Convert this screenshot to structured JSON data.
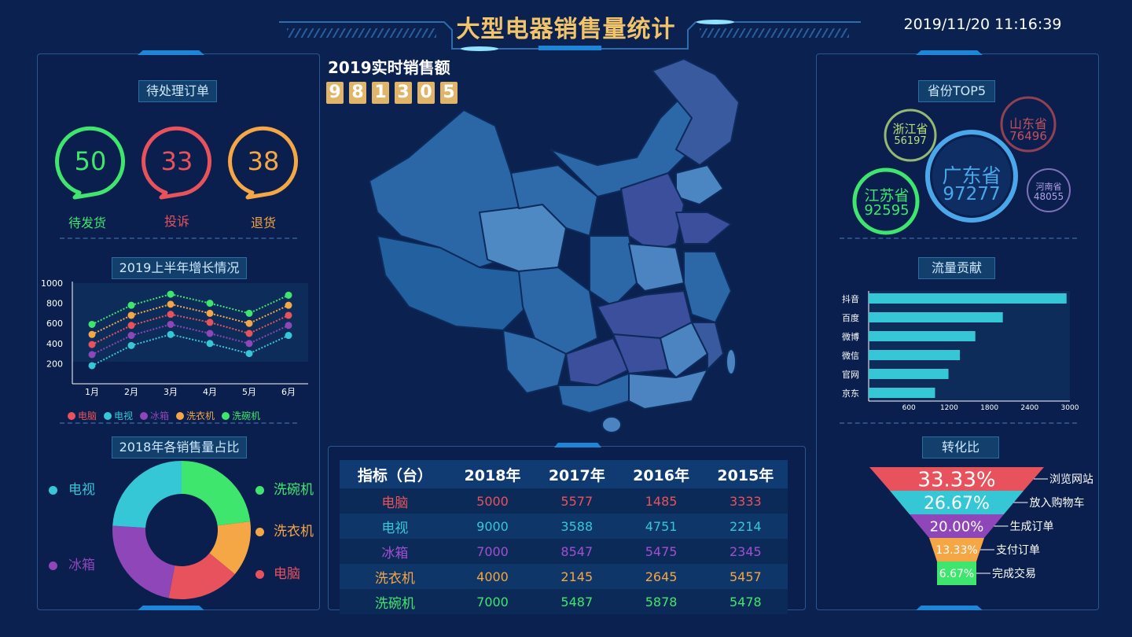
{
  "header": {
    "title": "大型电器销售量统计",
    "datetime": "2019/11/20 11:16:39"
  },
  "pending_orders": {
    "title": "待处理订单",
    "items": [
      {
        "value": "50",
        "label": "待发货",
        "color": "#3fe66d"
      },
      {
        "value": "33",
        "label": "投诉",
        "color": "#e8525d"
      },
      {
        "value": "38",
        "label": "退货",
        "color": "#f5a645"
      }
    ]
  },
  "growth": {
    "title": "2019上半年增长情况",
    "chart_data": {
      "type": "line",
      "categories": [
        "1月",
        "2月",
        "3月",
        "4月",
        "5月",
        "6月"
      ],
      "y_ticks": [
        "1000",
        "800",
        "600",
        "400",
        "200"
      ],
      "ylim": [
        0,
        1000
      ],
      "series": [
        {
          "name": "电脑",
          "color": "#e8525d",
          "values": [
            390,
            580,
            690,
            610,
            500,
            680
          ]
        },
        {
          "name": "电视",
          "color": "#35c7d6",
          "values": [
            180,
            380,
            490,
            400,
            300,
            480
          ]
        },
        {
          "name": "冰箱",
          "color": "#8f46b8",
          "values": [
            290,
            480,
            590,
            500,
            400,
            580
          ]
        },
        {
          "name": "洗衣机",
          "color": "#f5a645",
          "values": [
            490,
            680,
            790,
            700,
            600,
            780
          ]
        },
        {
          "name": "洗碗机",
          "color": "#3fe66d",
          "values": [
            590,
            780,
            890,
            800,
            700,
            880
          ]
        }
      ]
    }
  },
  "share": {
    "title": "2018年各销售量占比",
    "chart_data": {
      "type": "pie",
      "slices": [
        {
          "name": "洗碗机",
          "value": 23,
          "color": "#3fe66d"
        },
        {
          "name": "洗衣机",
          "value": 13,
          "color": "#f5a645"
        },
        {
          "name": "电脑",
          "value": 17,
          "color": "#e8525d"
        },
        {
          "name": "冰箱",
          "value": 23,
          "color": "#8f46b8"
        },
        {
          "name": "电视",
          "value": 24,
          "color": "#35c7d6"
        }
      ]
    }
  },
  "realtime": {
    "title": "2019实时销售额",
    "digits": [
      "9",
      "8",
      "1",
      "3",
      "0",
      "5"
    ]
  },
  "sales_table": {
    "headers": [
      "指标（台）",
      "2018年",
      "2017年",
      "2016年",
      "2015年"
    ],
    "rows": [
      {
        "name": "电脑",
        "color": "#e8525d",
        "values": [
          "5000",
          "5577",
          "1485",
          "3333"
        ]
      },
      {
        "name": "电视",
        "color": "#35c7d6",
        "values": [
          "9000",
          "3588",
          "4751",
          "2214"
        ]
      },
      {
        "name": "冰箱",
        "color": "#a24fd0",
        "values": [
          "7000",
          "8547",
          "5475",
          "2345"
        ]
      },
      {
        "name": "洗衣机",
        "color": "#f5a645",
        "values": [
          "4000",
          "2145",
          "2645",
          "5457"
        ]
      },
      {
        "name": "洗碗机",
        "color": "#3fe66d",
        "values": [
          "7000",
          "5487",
          "5878",
          "5478"
        ]
      }
    ]
  },
  "province_top5": {
    "title": "省份TOP5",
    "bubbles": [
      {
        "name": "浙江省",
        "value": "56197",
        "color": "#b7e07a"
      },
      {
        "name": "山东省",
        "value": "76496",
        "color": "#b34a55"
      },
      {
        "name": "广东省",
        "value": "97277",
        "color": "#4aa8ea"
      },
      {
        "name": "江苏省",
        "value": "92595",
        "color": "#3fe66d"
      },
      {
        "name": "河南省",
        "value": "48055",
        "color": "#9a86d8"
      }
    ]
  },
  "traffic": {
    "title": "流量贡献",
    "chart_data": {
      "type": "bar",
      "categories": [
        "抖音",
        "百度",
        "微博",
        "微信",
        "官网",
        "京东"
      ],
      "values": [
        2950,
        2000,
        1590,
        1360,
        1190,
        990
      ],
      "x_ticks": [
        "600",
        "1200",
        "1800",
        "2400",
        "3000"
      ],
      "xlim": [
        0,
        3000
      ],
      "color": "#35c7d6"
    }
  },
  "conversion": {
    "title": "转化比",
    "stages": [
      {
        "percent": "33.33%",
        "label": "浏览网站",
        "color": "#e8525d"
      },
      {
        "percent": "26.67%",
        "label": "放入购物车",
        "color": "#35c7d6"
      },
      {
        "percent": "20.00%",
        "label": "生成订单",
        "color": "#8f46b8"
      },
      {
        "percent": "13.33%",
        "label": "支付订单",
        "color": "#f5a645"
      },
      {
        "percent": "6.67%",
        "label": "完成交易",
        "color": "#3fe66d"
      }
    ]
  }
}
